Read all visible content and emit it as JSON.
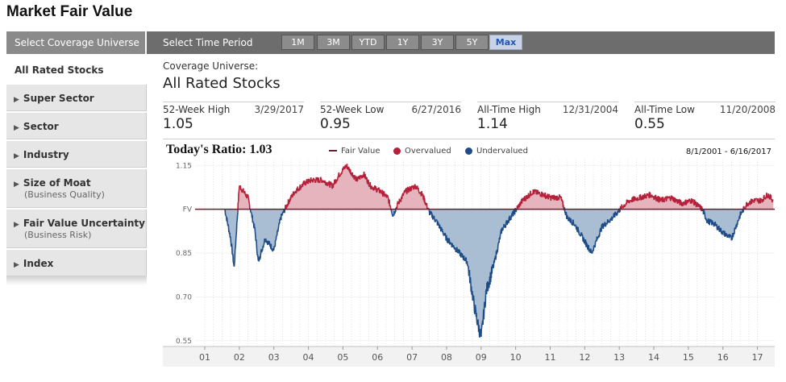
{
  "page": {
    "title": "Market Fair Value"
  },
  "nav": {
    "coverage_tab": "Select Coverage Universe",
    "time_label": "Select Time Period",
    "periods": [
      "1M",
      "3M",
      "YTD",
      "1Y",
      "3Y",
      "5Y",
      "Max"
    ],
    "active_period": "Max"
  },
  "sidebar": {
    "items": [
      {
        "label": "All Rated Stocks",
        "sub": ""
      },
      {
        "label": "Super Sector",
        "sub": ""
      },
      {
        "label": "Sector",
        "sub": ""
      },
      {
        "label": "Industry",
        "sub": ""
      },
      {
        "label": "Size of Moat",
        "sub": "(Business Quality)"
      },
      {
        "label": "Fair Value Uncertainty",
        "sub": "(Business Risk)"
      },
      {
        "label": "Index",
        "sub": ""
      }
    ]
  },
  "coverage": {
    "label": "Coverage Universe:",
    "value": "All Rated Stocks"
  },
  "stats": [
    {
      "label": "52-Week High",
      "date": "3/29/2017",
      "value": "1.05"
    },
    {
      "label": "52-Week Low",
      "date": "6/27/2016",
      "value": "0.95"
    },
    {
      "label": "All-Time High",
      "date": "12/31/2004",
      "value": "1.14"
    },
    {
      "label": "All-Time Low",
      "date": "11/20/2008",
      "value": "0.55"
    }
  ],
  "chart_header": {
    "ratio_label": "Today's Ratio:",
    "ratio_value": "1.03",
    "legend": {
      "fair_value": "Fair Value",
      "overvalued": "Overvalued",
      "undervalued": "Undervalued"
    },
    "date_range": "8/1/2001 - 6/16/2017"
  },
  "colors": {
    "over": "#b5203a",
    "overFill": "#e5b4bd",
    "under": "#1f4c86",
    "underFill": "#a9bdd3",
    "fvLine": "#6a1f2e",
    "active": "#1d58b8"
  },
  "chart_data": {
    "type": "area",
    "title": "Market Fair Value",
    "baseline": 1.0,
    "baseline_label": "FV",
    "ylim": [
      0.53,
      1.17
    ],
    "yticks": [
      1.15,
      1.0,
      0.85,
      0.7,
      0.55
    ],
    "ytick_labels": [
      "1.15",
      "FV",
      "0.85",
      "0.70",
      "0.55"
    ],
    "xlim": [
      2000.72,
      2017.5
    ],
    "year_ticks": [
      2001,
      2002,
      2003,
      2004,
      2005,
      2006,
      2007,
      2008,
      2009,
      2010,
      2011,
      2012,
      2013,
      2014,
      2015,
      2016,
      2017
    ],
    "year_labels": [
      "01",
      "02",
      "03",
      "04",
      "05",
      "06",
      "07",
      "08",
      "09",
      "10",
      "11",
      "12",
      "13",
      "14",
      "15",
      "16",
      "17"
    ],
    "x": [
      2001.58,
      2001.75,
      2001.85,
      2002.0,
      2002.25,
      2002.45,
      2002.55,
      2002.75,
      2003.0,
      2003.2,
      2003.4,
      2003.6,
      2003.9,
      2004.1,
      2004.4,
      2004.7,
      2004.9,
      2005.1,
      2005.4,
      2005.6,
      2005.8,
      2006.1,
      2006.3,
      2006.45,
      2006.6,
      2006.8,
      2007.1,
      2007.3,
      2007.5,
      2007.7,
      2008.0,
      2008.3,
      2008.6,
      2008.8,
      2008.9,
      2009.0,
      2009.15,
      2009.35,
      2009.6,
      2009.9,
      2010.2,
      2010.5,
      2010.8,
      2011.0,
      2011.3,
      2011.5,
      2011.7,
      2011.95,
      2012.2,
      2012.5,
      2012.8,
      2013.1,
      2013.3,
      2013.6,
      2013.9,
      2014.2,
      2014.5,
      2014.8,
      2015.1,
      2015.4,
      2015.55,
      2015.75,
      2016.0,
      2016.25,
      2016.5,
      2016.7,
      2016.9,
      2017.1,
      2017.3,
      2017.46
    ],
    "values": [
      1.0,
      0.9,
      0.8,
      1.08,
      1.04,
      0.93,
      0.82,
      0.9,
      0.86,
      0.97,
      1.02,
      1.06,
      1.09,
      1.1,
      1.1,
      1.08,
      1.12,
      1.15,
      1.1,
      1.12,
      1.08,
      1.06,
      1.04,
      0.98,
      1.02,
      1.06,
      1.08,
      1.05,
      0.99,
      0.96,
      0.9,
      0.86,
      0.82,
      0.67,
      0.61,
      0.56,
      0.72,
      0.8,
      0.93,
      0.98,
      1.03,
      1.06,
      1.05,
      1.04,
      1.04,
      0.97,
      0.95,
      0.9,
      0.85,
      0.94,
      0.97,
      1.01,
      1.03,
      1.04,
      1.05,
      1.03,
      1.04,
      1.02,
      1.03,
      1.0,
      0.96,
      0.95,
      0.92,
      0.9,
      0.98,
      1.02,
      1.03,
      1.03,
      1.05,
      1.03
    ]
  }
}
